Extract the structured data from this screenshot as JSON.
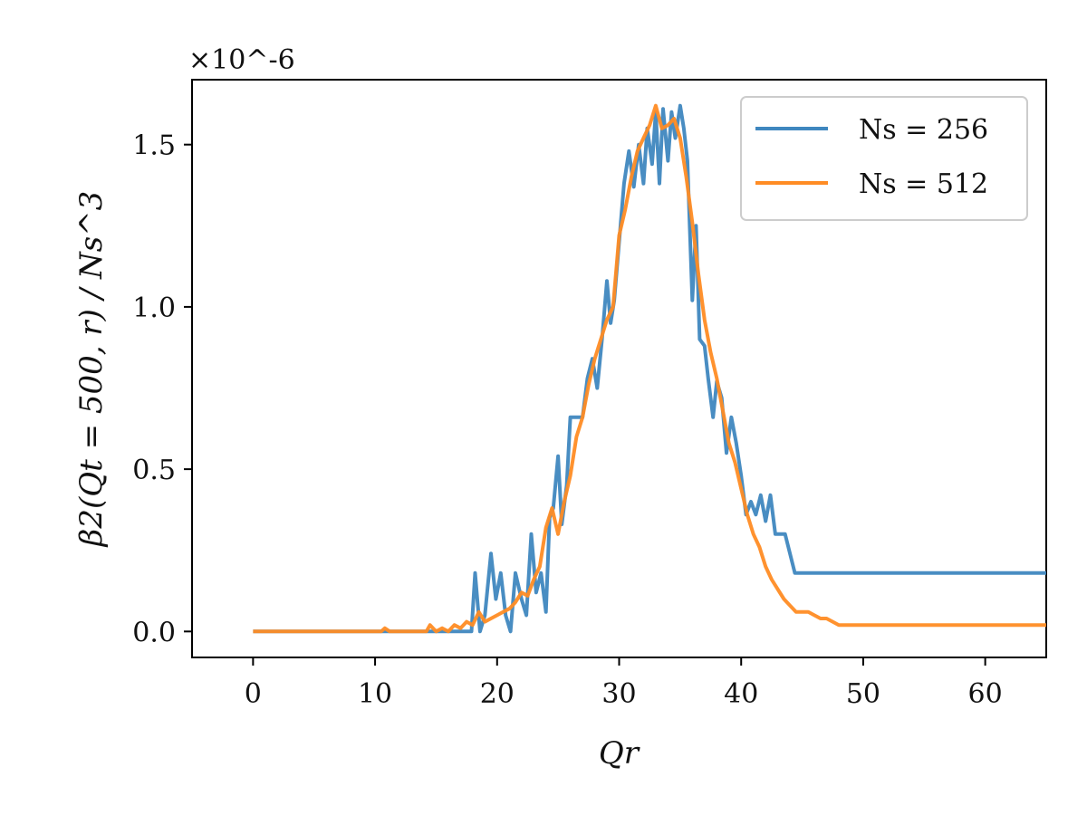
{
  "chart_data": {
    "type": "line",
    "title": "",
    "xlabel": "Qr",
    "ylabel": "β2(Qt = 500, r) / Ns^3",
    "y_multiplier_label": "×10^-6",
    "xlim": [
      -5,
      65
    ],
    "ylim": [
      -0.08,
      1.7
    ],
    "xticks": [
      0,
      10,
      20,
      30,
      40,
      50,
      60
    ],
    "xtick_labels": [
      "0",
      "10",
      "20",
      "30",
      "40",
      "50",
      "60"
    ],
    "yticks": [
      0.0,
      0.5,
      1.0,
      1.5
    ],
    "ytick_labels": [
      "0.0",
      "0.5",
      "1.0",
      "1.5"
    ],
    "grid": false,
    "legend_position": "top-right",
    "series": [
      {
        "name": "Ns = 256",
        "color": "#3f87bf",
        "x": [
          0,
          10,
          17.9,
          18.2,
          18.6,
          19.0,
          19.5,
          19.9,
          20.3,
          20.7,
          21.1,
          21.5,
          22.0,
          22.4,
          22.8,
          23.2,
          23.6,
          24.0,
          24.3,
          24.6,
          25.0,
          25.3,
          25.7,
          26.0,
          26.5,
          27.0,
          27.4,
          27.8,
          28.2,
          28.6,
          29.0,
          29.3,
          29.6,
          30.0,
          30.4,
          30.8,
          31.2,
          31.6,
          32.0,
          32.3,
          32.7,
          33.0,
          33.3,
          33.6,
          34.0,
          34.3,
          34.6,
          35.0,
          35.3,
          35.6,
          36.0,
          36.3,
          36.6,
          37.0,
          37.3,
          37.7,
          38.0,
          38.4,
          38.8,
          39.2,
          39.6,
          40.0,
          40.4,
          40.8,
          41.2,
          41.6,
          42.0,
          42.4,
          42.8,
          43.2,
          43.6,
          44.0,
          44.4,
          44.8,
          45.5,
          50,
          60,
          65
        ],
        "y": [
          0.0,
          0.0,
          0.0,
          0.18,
          0.0,
          0.05,
          0.24,
          0.1,
          0.18,
          0.05,
          0.0,
          0.18,
          0.1,
          0.05,
          0.3,
          0.12,
          0.18,
          0.06,
          0.35,
          0.38,
          0.54,
          0.33,
          0.45,
          0.66,
          0.66,
          0.66,
          0.78,
          0.84,
          0.75,
          0.9,
          1.08,
          0.95,
          1.02,
          1.2,
          1.38,
          1.48,
          1.37,
          1.5,
          1.38,
          1.55,
          1.44,
          1.6,
          1.38,
          1.61,
          1.45,
          1.6,
          1.52,
          1.62,
          1.55,
          1.45,
          1.02,
          1.25,
          0.9,
          0.88,
          0.78,
          0.66,
          0.77,
          0.72,
          0.55,
          0.66,
          0.58,
          0.48,
          0.36,
          0.4,
          0.36,
          0.42,
          0.34,
          0.42,
          0.3,
          0.3,
          0.3,
          0.24,
          0.18,
          0.18,
          0.18,
          0.18,
          0.18,
          0.18
        ]
      },
      {
        "name": "Ns = 512",
        "color": "#ff8c24",
        "x": [
          0,
          10.5,
          10.8,
          11.2,
          14.2,
          14.5,
          15.0,
          15.5,
          16.0,
          16.5,
          17.0,
          17.5,
          18.0,
          18.5,
          19.0,
          19.5,
          20.0,
          20.5,
          21.0,
          21.5,
          22.0,
          22.5,
          23.0,
          23.5,
          24.0,
          24.5,
          25.0,
          25.5,
          26.0,
          26.5,
          27.0,
          27.5,
          28.0,
          28.5,
          29.0,
          29.5,
          30.0,
          30.5,
          31.0,
          31.5,
          32.0,
          32.5,
          33.0,
          33.5,
          34.0,
          34.5,
          35.0,
          35.5,
          36.0,
          36.5,
          37.0,
          37.5,
          38.0,
          38.5,
          39.0,
          39.5,
          40.0,
          40.5,
          41.0,
          41.5,
          42.0,
          42.5,
          43.0,
          43.5,
          44.0,
          44.5,
          45.0,
          45.5,
          46.0,
          46.5,
          47.0,
          47.5,
          48.0,
          48.5,
          50,
          60,
          65
        ],
        "y": [
          0.0,
          0.0,
          0.01,
          0.0,
          0.0,
          0.02,
          0.0,
          0.01,
          0.0,
          0.02,
          0.01,
          0.03,
          0.02,
          0.06,
          0.03,
          0.04,
          0.05,
          0.06,
          0.07,
          0.09,
          0.12,
          0.11,
          0.16,
          0.2,
          0.32,
          0.38,
          0.3,
          0.4,
          0.48,
          0.6,
          0.66,
          0.76,
          0.84,
          0.9,
          0.96,
          1.0,
          1.22,
          1.3,
          1.4,
          1.48,
          1.52,
          1.56,
          1.62,
          1.55,
          1.56,
          1.58,
          1.52,
          1.4,
          1.26,
          1.1,
          0.96,
          0.86,
          0.78,
          0.68,
          0.58,
          0.52,
          0.44,
          0.36,
          0.3,
          0.26,
          0.2,
          0.16,
          0.13,
          0.1,
          0.08,
          0.06,
          0.06,
          0.06,
          0.05,
          0.04,
          0.04,
          0.03,
          0.02,
          0.02,
          0.02,
          0.02,
          0.02
        ]
      }
    ]
  }
}
